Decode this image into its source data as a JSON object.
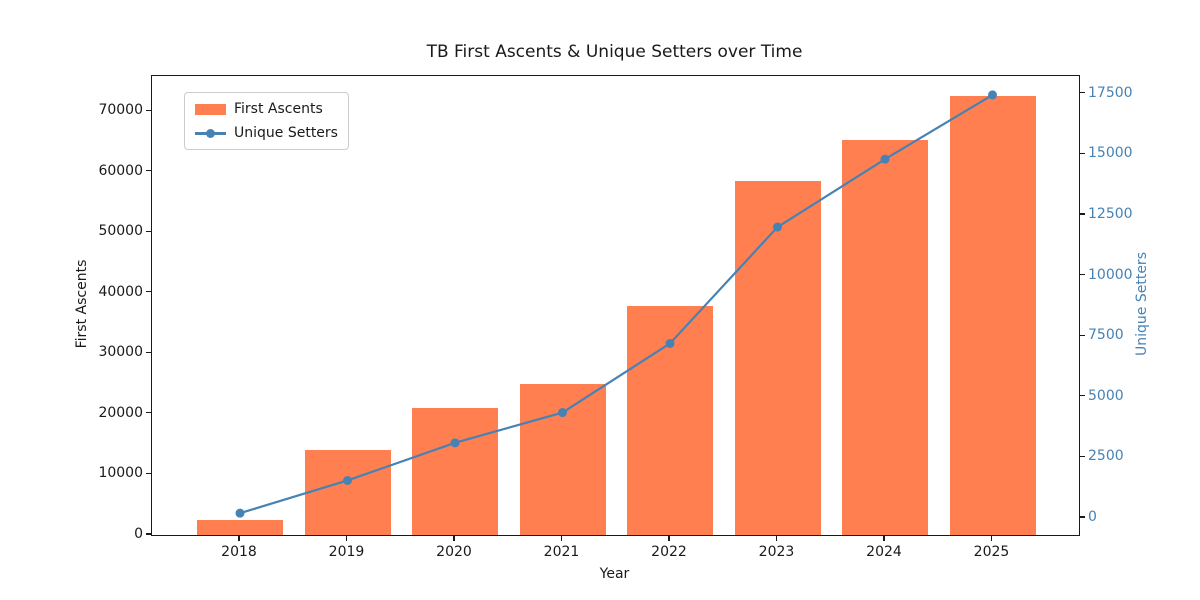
{
  "title": "TB First Ascents & Unique Setters over Time",
  "colors": {
    "bar": "#FF7F50",
    "line": "#4682B4",
    "marker": "#4682B4",
    "left_axis_text": "#1a1a1a",
    "right_axis_text": "#4682B4",
    "spine": "#1a1a1a",
    "legend_border": "#cccccc"
  },
  "chart_data": {
    "type": "bar",
    "title": "TB First Ascents & Unique Setters over Time",
    "xlabel": "Year",
    "ylabel_left": "First Ascents",
    "ylabel_right": "Unique Setters",
    "categories": [
      "2018",
      "2019",
      "2020",
      "2021",
      "2022",
      "2023",
      "2024",
      "2025"
    ],
    "series": [
      {
        "name": "First Ascents",
        "type": "bar",
        "axis": "left",
        "color": "#FF7F50",
        "values": [
          2500,
          14000,
          21000,
          25000,
          37800,
          58500,
          65300,
          72500
        ]
      },
      {
        "name": "Unique Setters",
        "type": "line",
        "axis": "right",
        "color": "#4682B4",
        "marker": "circle",
        "values": [
          200,
          1550,
          3100,
          4350,
          7200,
          12000,
          14800,
          17450
        ]
      }
    ],
    "y1ticks": [
      0,
      10000,
      20000,
      30000,
      40000,
      50000,
      60000,
      70000
    ],
    "y2ticks": [
      0,
      2500,
      5000,
      7500,
      10000,
      12500,
      15000,
      17500
    ],
    "y1lim": [
      0,
      75800
    ],
    "y2lim": [
      -700,
      18230
    ],
    "xlim": [
      -0.8186,
      7.8046
    ],
    "grid": false,
    "legend_position": "upper left"
  }
}
